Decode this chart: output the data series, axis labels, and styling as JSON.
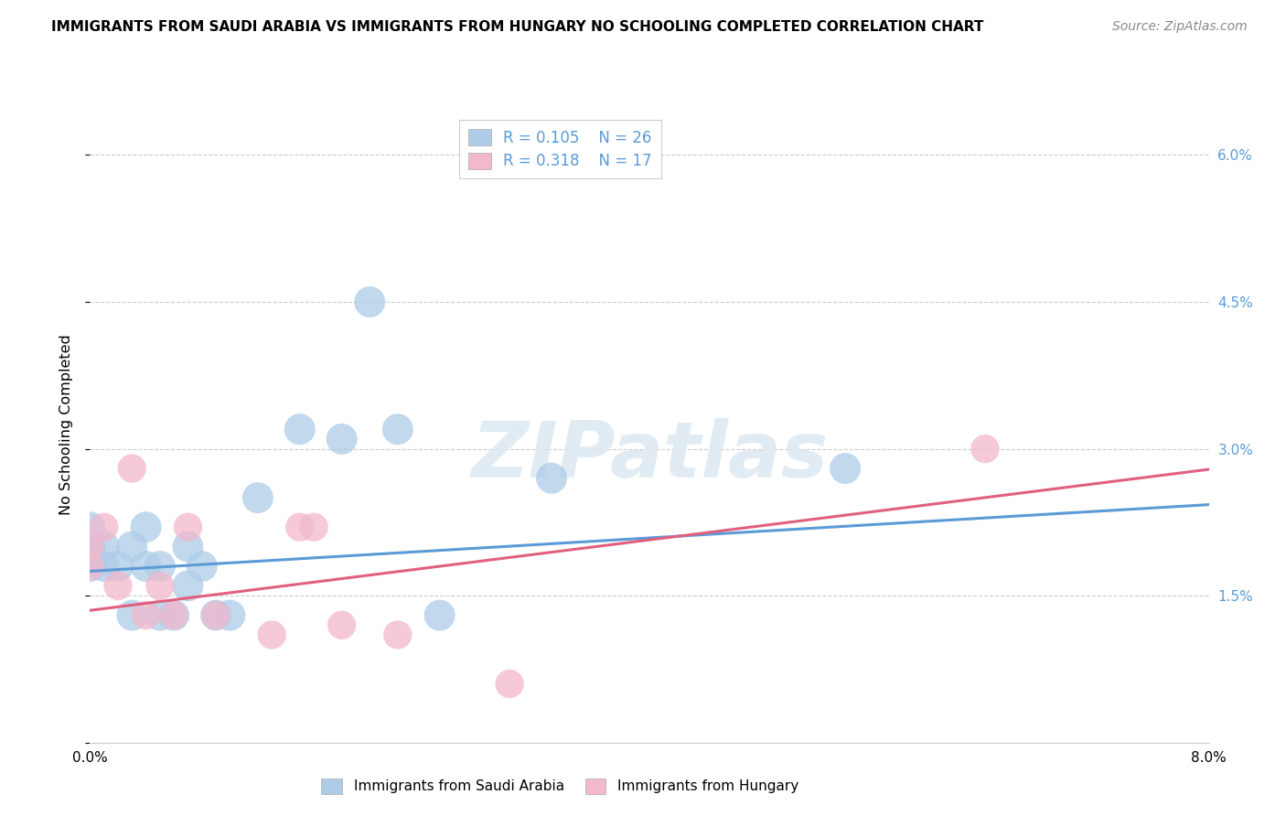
{
  "title": "IMMIGRANTS FROM SAUDI ARABIA VS IMMIGRANTS FROM HUNGARY NO SCHOOLING COMPLETED CORRELATION CHART",
  "source": "Source: ZipAtlas.com",
  "ylabel": "No Schooling Completed",
  "xlim": [
    0.0,
    0.08
  ],
  "ylim": [
    0.0,
    0.065
  ],
  "x_ticks": [
    0.0,
    0.01,
    0.02,
    0.03,
    0.04,
    0.05,
    0.06,
    0.07,
    0.08
  ],
  "x_tick_labels": [
    "0.0%",
    "",
    "",
    "",
    "",
    "",
    "",
    "",
    "8.0%"
  ],
  "y_ticks": [
    0.0,
    0.015,
    0.03,
    0.045,
    0.06
  ],
  "y_tick_labels": [
    "",
    "1.5%",
    "3.0%",
    "4.5%",
    "6.0%"
  ],
  "saudi_color": "#aecce8",
  "hungary_color": "#f2b8cc",
  "saudi_line_color": "#5b9bd5",
  "hungary_line_color": "#e06080",
  "legend_text_color": "#5b9bd5",
  "watermark_color": "#dce8f2",
  "saudi_R": 0.105,
  "saudi_N": 26,
  "hungary_R": 0.318,
  "hungary_N": 17,
  "saudi_x": [
    0.0,
    0.0,
    0.0,
    0.001,
    0.001,
    0.002,
    0.003,
    0.003,
    0.004,
    0.004,
    0.005,
    0.005,
    0.006,
    0.007,
    0.007,
    0.008,
    0.009,
    0.01,
    0.012,
    0.015,
    0.018,
    0.02,
    0.022,
    0.025,
    0.033,
    0.054
  ],
  "saudi_y": [
    0.022,
    0.02,
    0.018,
    0.02,
    0.018,
    0.018,
    0.02,
    0.013,
    0.022,
    0.018,
    0.018,
    0.013,
    0.013,
    0.02,
    0.016,
    0.018,
    0.013,
    0.013,
    0.025,
    0.032,
    0.031,
    0.045,
    0.032,
    0.013,
    0.027,
    0.028
  ],
  "hungary_x": [
    0.0,
    0.0,
    0.001,
    0.002,
    0.003,
    0.004,
    0.005,
    0.006,
    0.007,
    0.009,
    0.013,
    0.015,
    0.016,
    0.018,
    0.022,
    0.03,
    0.064
  ],
  "hungary_y": [
    0.02,
    0.018,
    0.022,
    0.016,
    0.028,
    0.013,
    0.016,
    0.013,
    0.022,
    0.013,
    0.011,
    0.022,
    0.022,
    0.012,
    0.011,
    0.006,
    0.03
  ],
  "saudi_intercept": 0.0175,
  "saudi_slope": 0.085,
  "hungary_intercept": 0.0135,
  "hungary_slope": 0.18,
  "bubble_size": 600
}
